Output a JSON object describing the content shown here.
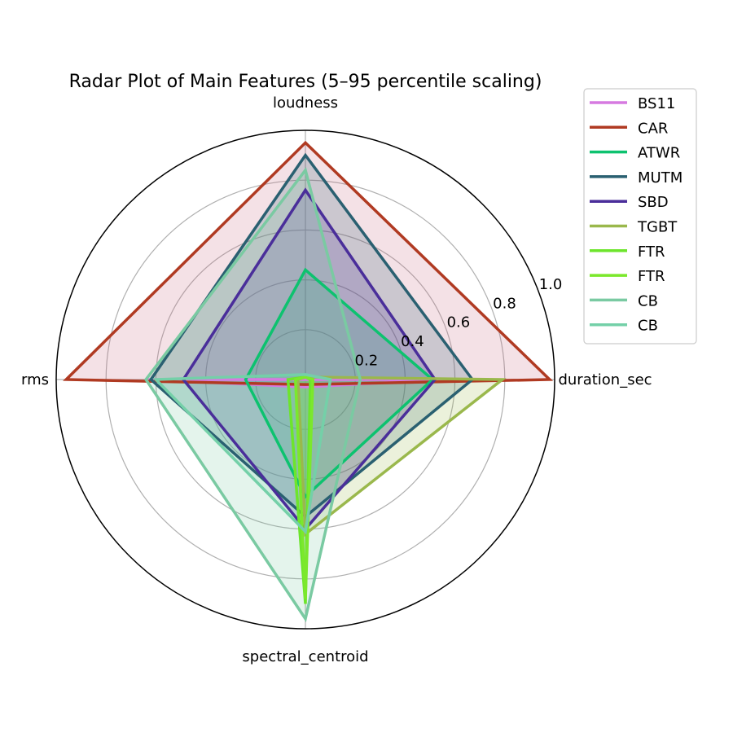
{
  "chart_data": {
    "type": "radar",
    "title": "Radar Plot of Main Features (5–95 percentile scaling)",
    "axes": [
      "duration_sec",
      "loudness",
      "rms",
      "spectral_centroid"
    ],
    "rlim": [
      0,
      1.0
    ],
    "rticks": [
      0.2,
      0.4,
      0.6,
      0.8,
      1.0
    ],
    "rtick_labels": [
      "0.2",
      "0.4",
      "0.6",
      "0.8",
      "1.0"
    ],
    "grid": true,
    "legend_position": "top-right",
    "series": [
      {
        "name": "BS11",
        "color": "#d67ae0",
        "fill": "#d67ae0",
        "values": [
          0.55,
          0.0,
          0.63,
          0.03
        ]
      },
      {
        "name": "CAR",
        "color": "#b03a22",
        "fill": "#c96a80",
        "values": [
          0.98,
          0.95,
          0.96,
          0.02
        ]
      },
      {
        "name": "ATWR",
        "color": "#0dc26f",
        "fill": "#0dc26f",
        "values": [
          0.51,
          0.44,
          0.24,
          0.47
        ]
      },
      {
        "name": "MUTM",
        "color": "#2a6071",
        "fill": "#2a6071",
        "values": [
          0.67,
          0.9,
          0.62,
          0.55
        ]
      },
      {
        "name": "SBD",
        "color": "#4a2e9a",
        "fill": "#4a2e9a",
        "values": [
          0.52,
          0.76,
          0.49,
          0.6
        ]
      },
      {
        "name": "TGBT",
        "color": "#9ab84c",
        "fill": "#9ab84c",
        "values": [
          0.79,
          0.01,
          0.03,
          0.62
        ]
      },
      {
        "name": "FTR",
        "color": "#6de52c",
        "fill": "#6de52c",
        "values": [
          0.02,
          0.01,
          0.07,
          0.9
        ]
      },
      {
        "name": "FTR",
        "color": "#7be82c",
        "fill": "#7be82c",
        "values": [
          0.03,
          0.01,
          0.04,
          0.88
        ]
      },
      {
        "name": "CB",
        "color": "#7acaa2",
        "fill": "#7acaa2",
        "values": [
          0.22,
          0.84,
          0.64,
          0.96
        ]
      },
      {
        "name": "CB",
        "color": "#74d0a8",
        "fill": "#74d0a8",
        "values": [
          0.1,
          0.02,
          0.6,
          0.61
        ]
      }
    ]
  }
}
